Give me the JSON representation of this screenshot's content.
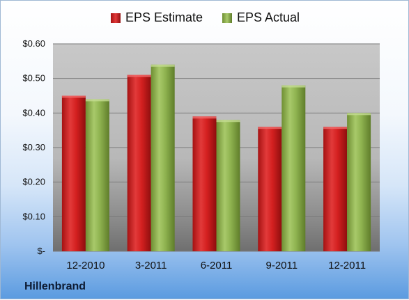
{
  "chart_data": {
    "type": "bar",
    "categories": [
      "12-2010",
      "3-2011",
      "6-2011",
      "9-2011",
      "12-2011"
    ],
    "series": [
      {
        "name": "EPS Estimate",
        "values": [
          0.45,
          0.51,
          0.39,
          0.36,
          0.36
        ],
        "color": "#d62a2a"
      },
      {
        "name": "EPS Actual",
        "values": [
          0.44,
          0.54,
          0.38,
          0.48,
          0.4
        ],
        "color": "#8fb350"
      }
    ],
    "ylim": [
      0,
      0.6
    ],
    "yticks": [
      0,
      0.1,
      0.2,
      0.3,
      0.4,
      0.5,
      0.6
    ],
    "ytick_labels": [
      "$-",
      "$0.10",
      "$0.20",
      "$0.30",
      "$0.40",
      "$0.50",
      "$0.60"
    ],
    "grid": true,
    "legend": "top-center"
  },
  "company": "Hillenbrand"
}
